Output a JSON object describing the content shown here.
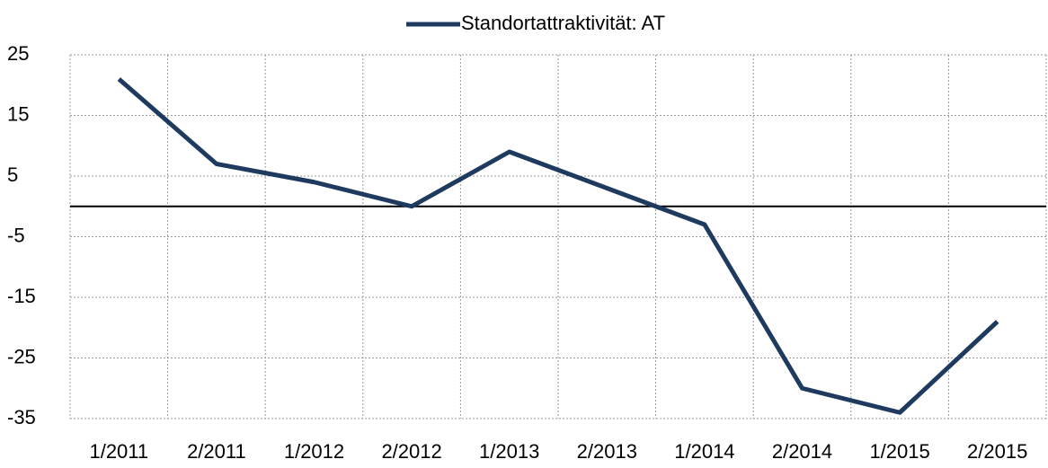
{
  "chart_data": {
    "type": "line",
    "categories": [
      "1/2011",
      "2/2011",
      "1/2012",
      "2/2012",
      "1/2013",
      "2/2013",
      "1/2014",
      "2/2014",
      "1/2015",
      "2/2015"
    ],
    "series": [
      {
        "name": "Standortattraktivität: AT",
        "color": "#1f3a5f",
        "values": [
          21,
          7,
          4,
          0,
          9,
          3,
          -3,
          -30,
          -34,
          -19
        ]
      }
    ],
    "ylim": [
      -35,
      25
    ],
    "yticks": [
      25,
      15,
      5,
      -5,
      -15,
      -25,
      -35
    ],
    "grid": true,
    "legend": "top"
  }
}
